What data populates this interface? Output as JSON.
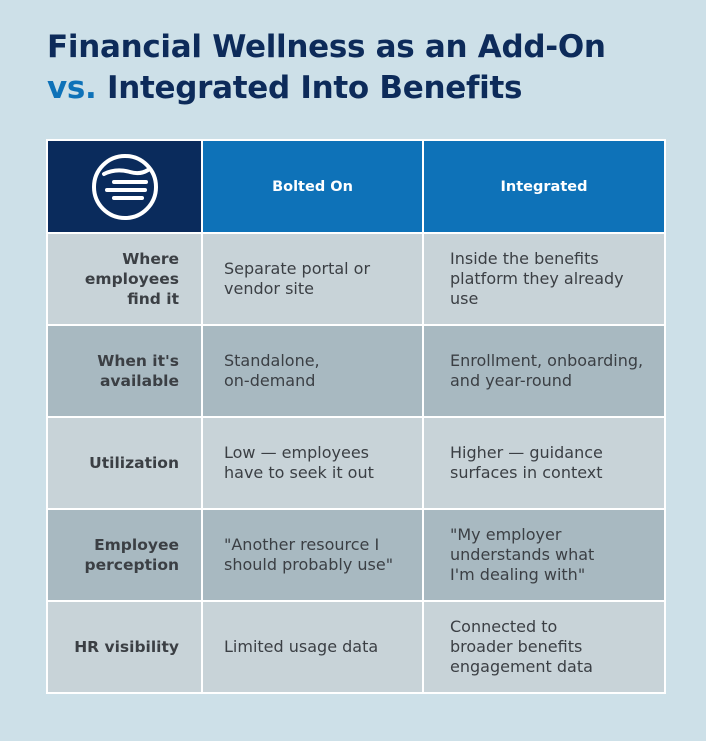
{
  "title": {
    "line1": "Financial Wellness as an Add-On",
    "accent": "vs.",
    "line2": " Integrated Into Benefits"
  },
  "table": {
    "logo_icon": "wave-circle-logo-icon",
    "headers": [
      "Bolted On",
      "Integrated"
    ],
    "rows": [
      {
        "label": "Where employees find it",
        "bolted_on": "Separate portal or vendor site",
        "integrated": "Inside the benefits platform they already use"
      },
      {
        "label": "When it's available",
        "bolted_on": "Standalone, on-demand",
        "integrated": "Enrollment, onboarding, and year-round"
      },
      {
        "label": "Utilization",
        "bolted_on": "Low — employees have to seek it out",
        "integrated": "Higher — guidance surfaces in context"
      },
      {
        "label": "Employee perception",
        "bolted_on": "\"Another resource I should probably use\"",
        "integrated": "\"My employer understands what I'm dealing with\""
      },
      {
        "label": "HR visibility",
        "bolted_on": "Limited usage data",
        "integrated": "Connected to broader benefits engagement data"
      }
    ]
  },
  "colors": {
    "background": "#cde0e8",
    "title_navy": "#0d2b5a",
    "accent_blue": "#0e72b8",
    "logo_navy": "#0a2b5c",
    "row_light": "#c8d3d8",
    "row_dark": "#a8b9c1"
  }
}
